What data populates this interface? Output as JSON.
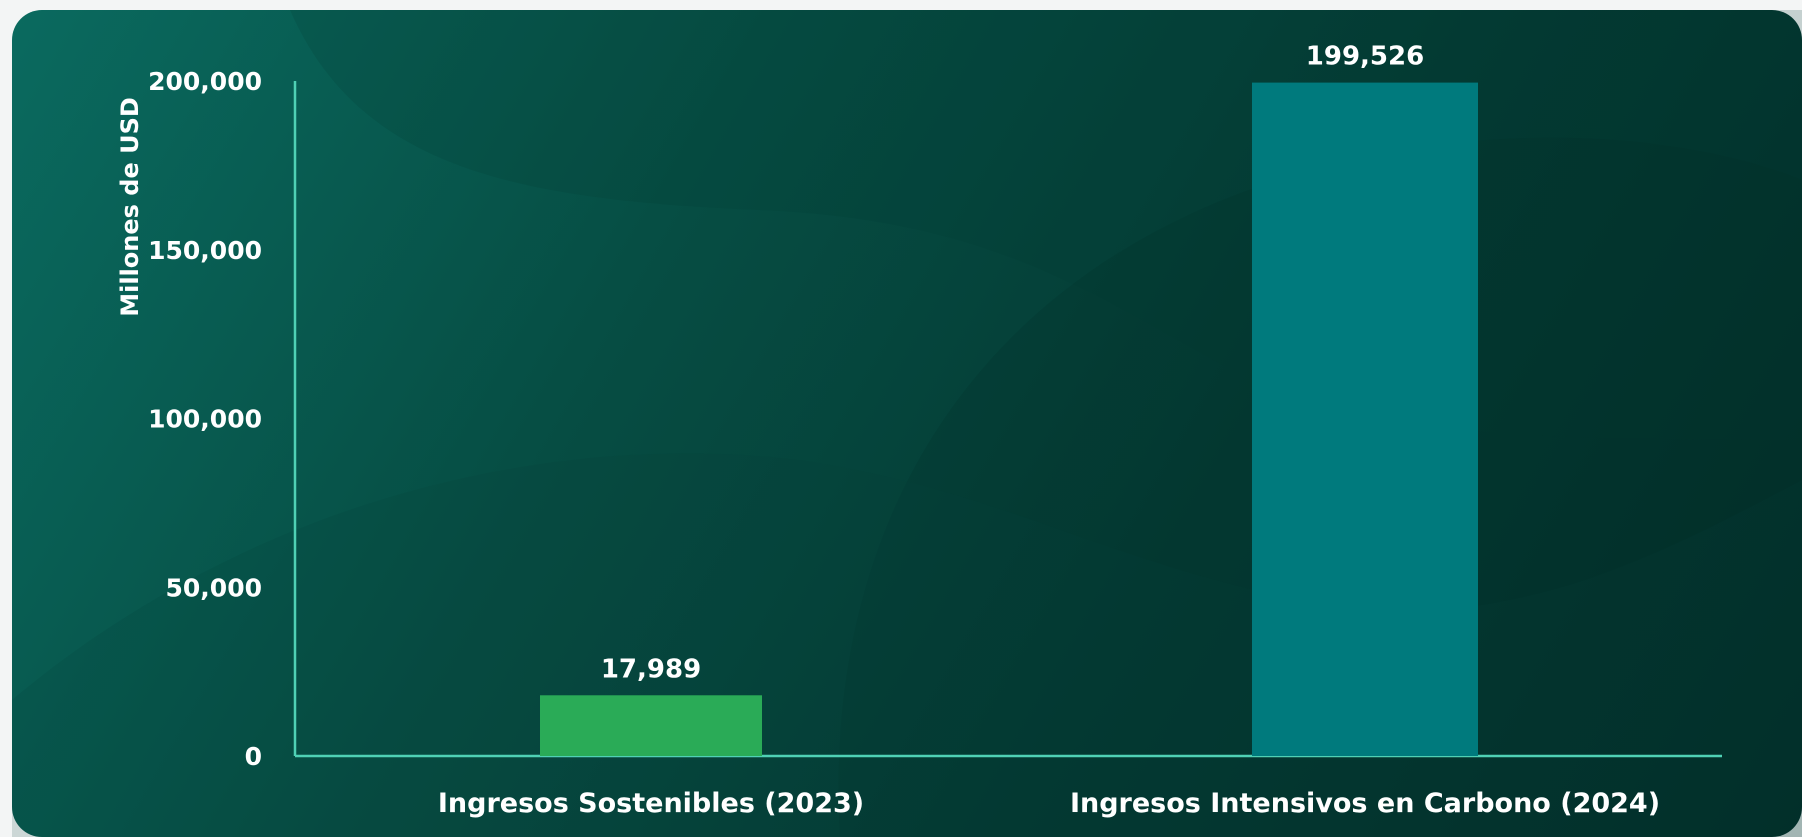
{
  "chart_data": {
    "type": "bar",
    "categories": [
      "Ingresos Sostenibles (2023)",
      "Ingresos Intensivos en Carbono (2024)"
    ],
    "values": [
      17989,
      199526
    ],
    "value_labels": [
      "17,989",
      "199,526"
    ],
    "ylabel": "Millones de USD",
    "ylim": [
      0,
      200000
    ],
    "yticks": [
      0,
      50000,
      100000,
      150000,
      200000
    ],
    "ytick_labels": [
      "0",
      "50,000",
      "100,000",
      "150,000",
      "200,000"
    ],
    "grid": false,
    "legend": "none",
    "colors": {
      "bar_1": "#2aab57",
      "bar_2": "#007a7d",
      "axis": "#4fd1b5",
      "text": "#ffffff",
      "background_start": "#0a6a5f",
      "background_end": "#022c27"
    }
  }
}
